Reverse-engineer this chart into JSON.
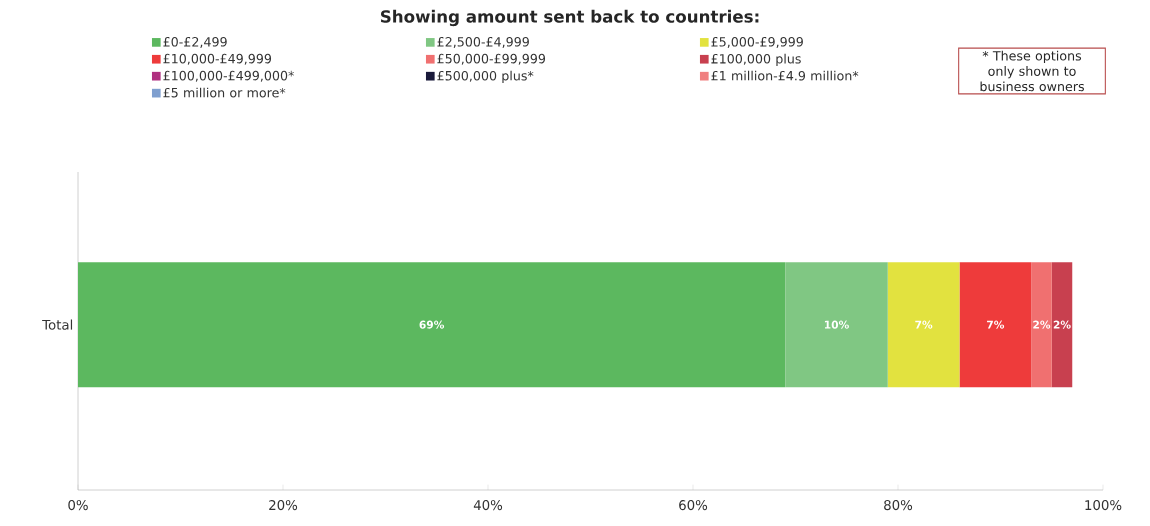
{
  "chart_data": {
    "type": "bar",
    "orientation": "horizontal",
    "stacked": true,
    "title": "Showing amount sent back to countries:",
    "categories": [
      "Total"
    ],
    "series": [
      {
        "name": "£0-£2,499",
        "color": "#5cb85f",
        "values": [
          69
        ],
        "value_labels": [
          "69%"
        ]
      },
      {
        "name": "£2,500-£4,999",
        "color": "#80c783",
        "values": [
          10
        ],
        "value_labels": [
          "10%"
        ]
      },
      {
        "name": "£5,000-£9,999",
        "color": "#e2e23f",
        "values": [
          7
        ],
        "value_labels": [
          "7%"
        ]
      },
      {
        "name": "£10,000-£49,999",
        "color": "#ee3b3b",
        "values": [
          7
        ],
        "value_labels": [
          "7%"
        ]
      },
      {
        "name": "£50,000-£99,999",
        "color": "#f07070",
        "values": [
          2
        ],
        "value_labels": [
          "2%"
        ]
      },
      {
        "name": "£100,000 plus",
        "color": "#c8404f",
        "values": [
          2
        ],
        "value_labels": [
          "2%"
        ]
      },
      {
        "name": "£100,000-£499,000*",
        "color": "#b03080",
        "values": [
          0
        ],
        "value_labels": [
          null
        ]
      },
      {
        "name": "£500,000 plus*",
        "color": "#1a1a3a",
        "values": [
          0
        ],
        "value_labels": [
          null
        ]
      },
      {
        "name": "£1 million-£4.9 million*",
        "color": "#f08080",
        "values": [
          0
        ],
        "value_labels": [
          null
        ]
      },
      {
        "name": "£5 million or more*",
        "color": "#7f9fcf",
        "values": [
          0
        ],
        "value_labels": [
          null
        ]
      }
    ],
    "xlim": [
      0,
      100
    ],
    "xticks": [
      {
        "value": 0,
        "label": "0%"
      },
      {
        "value": 20,
        "label": "20%"
      },
      {
        "value": 40,
        "label": "40%"
      },
      {
        "value": 60,
        "label": "60%"
      },
      {
        "value": 80,
        "label": "80%"
      },
      {
        "value": 100,
        "label": "100%"
      }
    ],
    "legend": "top",
    "grid": false,
    "annotations": [
      "* These options only shown to business owners"
    ]
  }
}
